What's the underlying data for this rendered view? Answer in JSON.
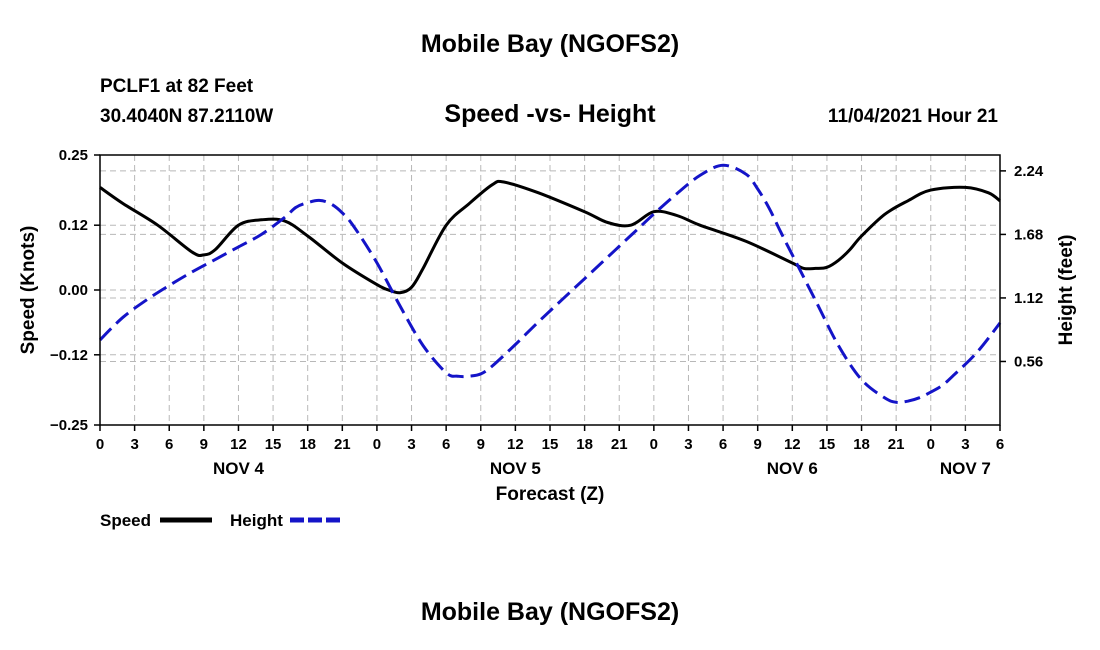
{
  "header": {
    "title": "Mobile Bay (NGOFS2)",
    "station": "PCLF1 at 82 Feet",
    "coords": "30.4040N  87.2110W",
    "subtitle": "Speed -vs- Height",
    "datetime": "11/04/2021 Hour 21"
  },
  "footer": {
    "title": "Mobile Bay (NGOFS2)"
  },
  "chart_data": {
    "type": "line",
    "xlabel": "Forecast (Z)",
    "ylabel_left": "Speed (Knots)",
    "ylabel_right": "Height (feet)",
    "xlim": [
      0,
      78
    ],
    "ylim_left": [
      -0.25,
      0.25
    ],
    "ylim_right": [
      0.0,
      2.38
    ],
    "grid": true,
    "legend_position": "bottom-left",
    "x_ticks": [
      0,
      3,
      6,
      9,
      12,
      15,
      18,
      21,
      24,
      27,
      30,
      33,
      36,
      39,
      42,
      45,
      48,
      51,
      54,
      57,
      60,
      63,
      66,
      69,
      72,
      75,
      78
    ],
    "x_tick_labels": [
      "0",
      "3",
      "6",
      "9",
      "12",
      "15",
      "18",
      "21",
      "0",
      "3",
      "6",
      "9",
      "12",
      "15",
      "18",
      "21",
      "0",
      "3",
      "6",
      "9",
      "12",
      "15",
      "18",
      "21",
      "0",
      "3",
      "6"
    ],
    "date_labels": [
      {
        "x": 12,
        "label": "NOV 4"
      },
      {
        "x": 36,
        "label": "NOV 5"
      },
      {
        "x": 60,
        "label": "NOV 6"
      },
      {
        "x": 75,
        "label": "NOV 7"
      }
    ],
    "y_left_ticks": [
      -0.25,
      -0.12,
      0.0,
      0.12,
      0.25
    ],
    "y_left_tick_labels": [
      "−0.25",
      "−0.12",
      "0.00",
      "0.12",
      "0.25"
    ],
    "y_right_ticks": [
      0.56,
      1.12,
      1.68,
      2.24
    ],
    "y_right_tick_labels": [
      "0.56",
      "1.12",
      "1.68",
      "2.24"
    ],
    "series": [
      {
        "name": "Speed",
        "axis": "left",
        "color": "#000000",
        "style": "solid",
        "x": [
          0,
          2,
          5,
          8,
          9,
          10,
          12,
          14,
          16,
          18,
          21,
          24,
          25,
          26,
          27,
          28,
          30,
          32,
          34,
          35,
          38,
          42,
          44,
          46,
          48,
          50,
          52,
          56,
          60,
          61,
          62,
          63,
          64,
          65,
          66,
          68,
          70,
          72,
          75,
          77,
          78
        ],
        "y": [
          0.19,
          0.16,
          0.12,
          0.07,
          0.065,
          0.075,
          0.12,
          0.13,
          0.128,
          0.1,
          0.05,
          0.01,
          0.0,
          -0.005,
          0.005,
          0.04,
          0.12,
          0.16,
          0.195,
          0.2,
          0.18,
          0.145,
          0.125,
          0.12,
          0.145,
          0.138,
          0.12,
          0.09,
          0.05,
          0.04,
          0.04,
          0.042,
          0.055,
          0.075,
          0.1,
          0.14,
          0.165,
          0.185,
          0.19,
          0.18,
          0.165
        ]
      },
      {
        "name": "Height",
        "axis": "right",
        "color": "#1414c8",
        "style": "dashed",
        "x": [
          0,
          2,
          4,
          6,
          8,
          10,
          12,
          14,
          16,
          17,
          18,
          19,
          20,
          21,
          22,
          24,
          26,
          28,
          30,
          31,
          32,
          33,
          34,
          36,
          38,
          40,
          42,
          44,
          46,
          48,
          50,
          52,
          54,
          56,
          57,
          58,
          59,
          60,
          62,
          64,
          66,
          68,
          69,
          70,
          71,
          72,
          73,
          74,
          76,
          78
        ],
        "y": [
          0.75,
          0.95,
          1.1,
          1.23,
          1.35,
          1.46,
          1.57,
          1.68,
          1.83,
          1.92,
          1.96,
          1.98,
          1.95,
          1.87,
          1.75,
          1.43,
          1.05,
          0.7,
          0.46,
          0.43,
          0.43,
          0.45,
          0.52,
          0.71,
          0.91,
          1.1,
          1.29,
          1.48,
          1.67,
          1.86,
          2.04,
          2.2,
          2.29,
          2.21,
          2.08,
          1.91,
          1.7,
          1.5,
          1.1,
          0.7,
          0.4,
          0.24,
          0.2,
          0.21,
          0.24,
          0.29,
          0.35,
          0.44,
          0.64,
          0.9
        ]
      }
    ]
  }
}
